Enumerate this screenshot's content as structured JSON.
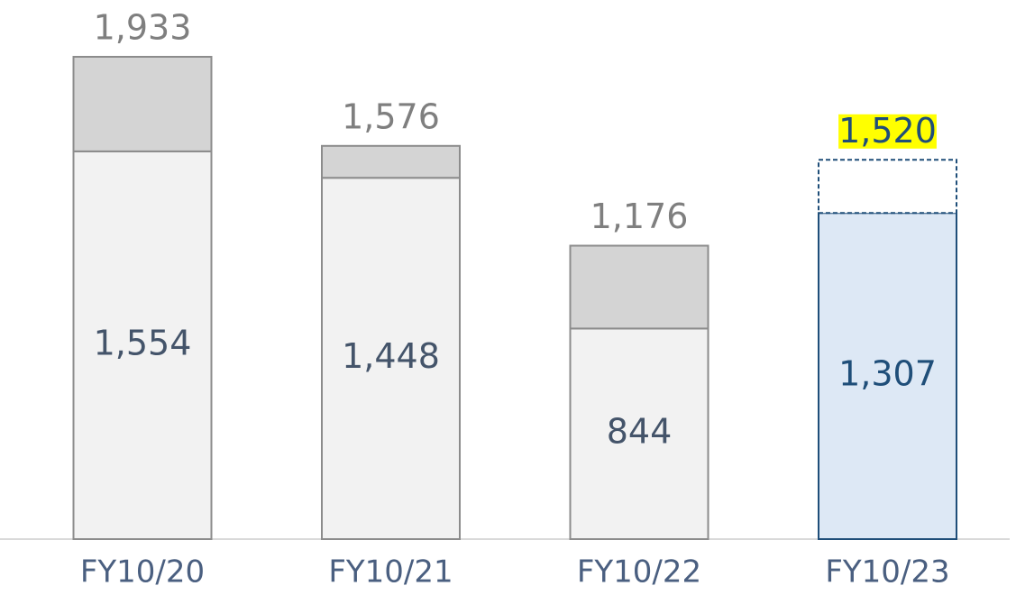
{
  "chart_data": {
    "type": "stacked_bar",
    "categories": [
      "FY10/20",
      "FY10/21",
      "FY10/22",
      "FY10/23"
    ],
    "series": [
      {
        "values": [
          1554,
          1448,
          844,
          1307
        ],
        "value_labels": [
          "1,554",
          "1,448",
          "844",
          "1,307"
        ],
        "colors": [
          "#f2f2f2",
          "#f2f2f2",
          "#f2f2f2",
          "#dde8f5"
        ],
        "stroke_colors": [
          "#8c8c8c",
          "#8c8c8c",
          "#8c8c8c",
          "#1f4e79"
        ],
        "label_colors": [
          "#44546a",
          "#44546a",
          "#44546a",
          "#1f4e79"
        ]
      },
      {
        "values": [
          379,
          128,
          332,
          213
        ],
        "colors": [
          "#d4d4d4",
          "#d4d4d4",
          "#d4d4d4",
          "#ffffff"
        ],
        "stroke_colors": [
          "#8c8c8c",
          "#8c8c8c",
          "#8c8c8c",
          "#1f4e79"
        ],
        "dashed": [
          false,
          false,
          false,
          true
        ]
      }
    ],
    "totals": [
      1933,
      1576,
      1176,
      1520
    ],
    "total_labels": [
      "1,933",
      "1,576",
      "1,176",
      "1,520"
    ],
    "total_label_colors": [
      "#7f7f7f",
      "#7f7f7f",
      "#7f7f7f",
      "#1f4e79"
    ],
    "total_highlight": [
      null,
      null,
      null,
      "#ffff00"
    ]
  }
}
